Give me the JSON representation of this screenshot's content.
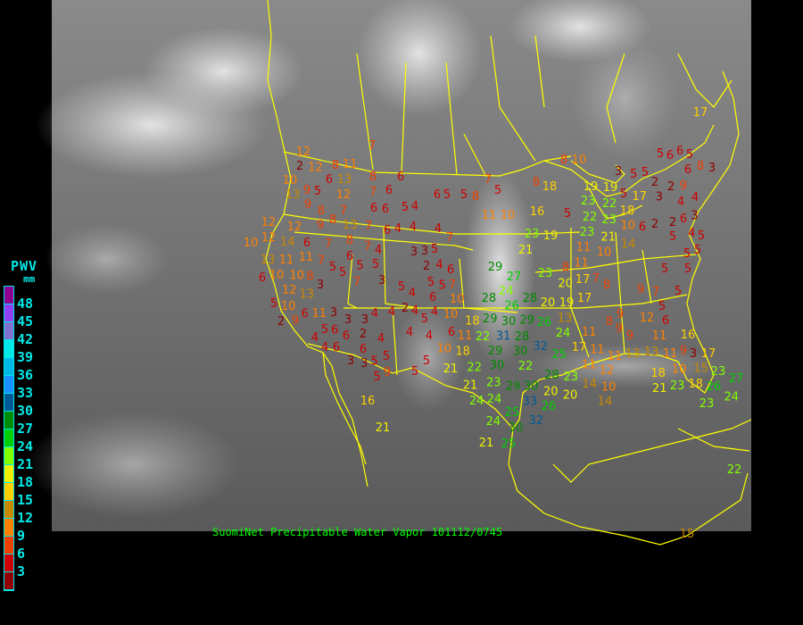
{
  "legend": {
    "title": "PWV",
    "unit": "mm",
    "labels": [
      "48",
      "45",
      "42",
      "39",
      "36",
      "33",
      "30",
      "27",
      "24",
      "21",
      "18",
      "15",
      "12",
      "9",
      "6",
      "3"
    ],
    "colors": [
      "#900090",
      "#9040f0",
      "#8070d0",
      "#00e8e8",
      "#00b8e8",
      "#1890ff",
      "#005a98",
      "#008c00",
      "#00d000",
      "#80ff00",
      "#f0f000",
      "#ffd000",
      "#c88800",
      "#ff8000",
      "#f04000",
      "#d00000",
      "#900000"
    ]
  },
  "caption": "SuomiNet Precipitable Water Vapor 101112/0745",
  "colors": {
    "borders": "#ffff00",
    "caption": "#00ff00",
    "legend_text": "#00e8e8"
  },
  "stations": [
    2,
    12,
    12,
    10,
    13,
    9,
    5,
    6,
    13,
    12,
    8,
    11,
    7,
    8,
    6,
    7,
    6,
    9,
    8,
    9,
    8,
    7,
    13,
    8,
    7,
    6,
    6,
    5,
    4,
    6,
    4,
    4,
    6,
    5,
    5,
    4,
    7,
    12,
    12,
    14,
    6,
    7,
    6,
    7,
    4,
    5,
    5,
    3,
    3,
    5,
    2,
    4,
    13,
    11,
    11,
    10,
    10,
    8,
    7,
    5,
    5,
    7,
    3,
    5,
    4,
    5,
    5,
    6,
    6,
    7,
    10,
    6,
    12,
    13,
    3,
    10,
    5,
    6,
    11,
    2,
    9,
    3,
    5,
    4,
    4,
    2,
    4,
    4,
    3,
    3,
    2,
    5,
    4,
    6,
    4,
    4,
    6,
    4,
    4,
    6,
    6,
    6,
    5,
    5,
    3,
    3,
    5,
    9,
    5,
    5,
    10,
    10,
    11,
    18,
    18,
    22,
    12,
    16,
    21,
    10,
    11,
    10,
    16,
    5,
    7,
    5,
    8,
    8,
    10,
    8,
    18,
    19,
    23,
    22,
    22,
    23,
    23,
    21,
    18,
    19,
    10,
    14,
    10,
    6,
    5,
    17,
    3,
    2,
    2,
    2,
    5,
    2,
    6,
    4,
    5,
    5,
    4,
    3,
    4,
    5,
    6,
    6,
    5,
    6,
    5,
    3,
    5,
    8,
    3,
    9,
    17,
    23,
    19,
    21,
    11,
    11,
    17,
    20,
    23,
    29,
    27,
    24,
    28,
    26,
    28,
    30,
    29,
    29,
    31,
    26,
    28,
    30,
    29,
    30,
    32,
    22,
    20,
    19,
    13,
    17,
    24,
    25,
    22,
    21,
    23,
    29,
    30,
    28,
    20,
    23,
    26,
    33,
    21,
    24,
    24,
    25,
    32,
    30,
    24,
    25,
    21,
    8,
    8,
    9,
    7,
    5,
    5,
    5,
    5,
    5,
    7,
    8,
    9,
    9,
    9,
    12,
    6,
    17,
    11,
    11,
    11,
    12,
    13,
    13,
    11,
    11,
    9,
    10,
    3,
    17,
    16,
    15,
    18,
    23,
    26,
    27,
    23,
    23,
    24,
    18,
    21,
    14,
    20,
    11,
    10,
    14,
    22,
    15
  ]
}
